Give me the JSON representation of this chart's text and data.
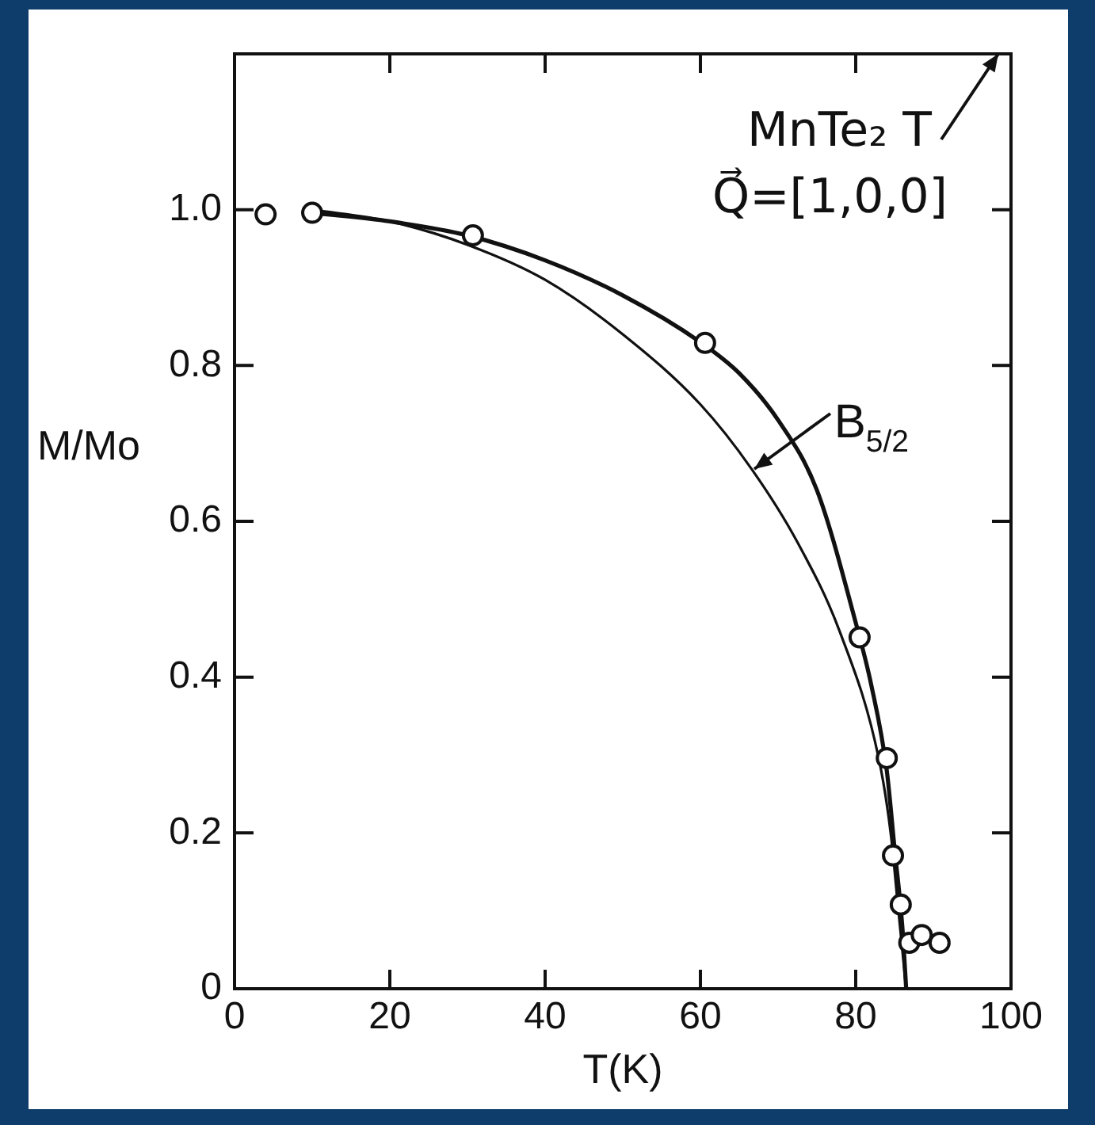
{
  "chart_data": {
    "type": "line",
    "xlabel": "T(K)",
    "ylabel": "M/Mo",
    "xlim": [
      0,
      100
    ],
    "xticks": [
      0,
      20,
      40,
      60,
      80,
      100
    ],
    "ylim": [
      0,
      1.2
    ],
    "yticks": [
      {
        "value": 0,
        "label": "0"
      },
      {
        "value": 0.2,
        "label": "0.2"
      },
      {
        "value": 0.4,
        "label": "0.4"
      },
      {
        "value": 0.6,
        "label": "0.6"
      },
      {
        "value": 0.8,
        "label": "0.8"
      },
      {
        "value": 1.0,
        "label": "1.0"
      }
    ],
    "grid": false,
    "legend": false,
    "annotations": [
      "MnTe₂ T",
      "Q⃗=[1,0,0]",
      {
        "text": "B$_{5/2}$",
        "x": 66.6,
        "y": 0.667
      }
    ],
    "series": [
      {
        "color": "#111111",
        "marker": "none",
        "x": [
          10,
          20,
          30,
          40,
          50,
          60,
          65,
          70,
          75,
          80,
          82,
          84,
          85,
          86,
          86.5
        ],
        "values": [
          0.996,
          0.985,
          0.967,
          0.935,
          0.89,
          0.83,
          0.79,
          0.73,
          0.64,
          0.47,
          0.39,
          0.28,
          0.18,
          0.08,
          0.0
        ]
      },
      {
        "color": "#111111",
        "marker": "none",
        "x": [
          10,
          20,
          30,
          40,
          50,
          60,
          66.6,
          72.5,
          78,
          83,
          84.5,
          85.5,
          86.5
        ],
        "values": [
          1.0,
          0.985,
          0.955,
          0.91,
          0.84,
          0.75,
          0.667,
          0.573,
          0.457,
          0.294,
          0.2,
          0.1,
          0.0
        ]
      },
      {
        "type": "scatter",
        "color": "#111111",
        "marker": "circle",
        "x": [
          4,
          10,
          30.7,
          60.6,
          80.5,
          84,
          84.8,
          85.8,
          86.9,
          88.5,
          90.8
        ],
        "values": [
          0.994,
          0.996,
          0.967,
          0.829,
          0.451,
          0.296,
          0.171,
          0.108,
          0.059,
          0.069,
          0.059
        ]
      }
    ]
  }
}
